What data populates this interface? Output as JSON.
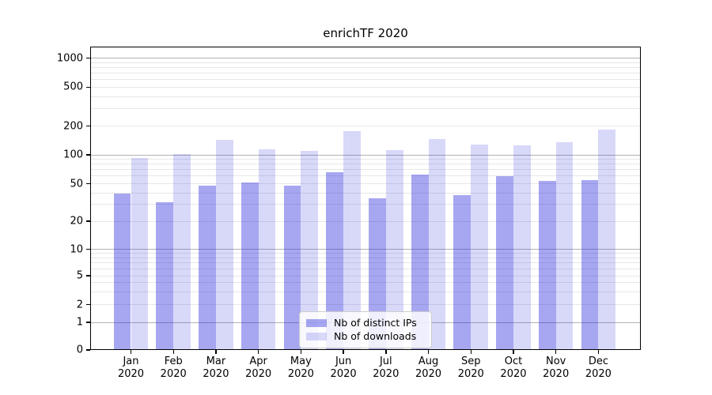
{
  "title": "enrichTF 2020",
  "legend": {
    "items": [
      {
        "label": "Nb of distinct IPs"
      },
      {
        "label": "Nb of downloads"
      }
    ]
  },
  "axes": {
    "y_tick_labels": [
      "0",
      "1",
      "2",
      "5",
      "10",
      "20",
      "50",
      "100",
      "200",
      "500",
      "1000"
    ],
    "x_months": [
      "Jan",
      "Feb",
      "Mar",
      "Apr",
      "May",
      "Jun",
      "Jul",
      "Aug",
      "Sep",
      "Oct",
      "Nov",
      "Dec"
    ],
    "x_year": "2020"
  },
  "colors": {
    "bar_dark": "rgba(34,34,221,0.40)",
    "bar_light": "rgba(34,34,221,0.175)",
    "bar_dark_flat": "#a7a7f1",
    "bar_light_flat": "#d8d8f9",
    "grid_major": "#b2b2b2",
    "grid_minor": "#e7e7e7",
    "spine": "#000000"
  },
  "chart_data": {
    "type": "bar",
    "title": "enrichTF 2020",
    "categories": [
      "Jan 2020",
      "Feb 2020",
      "Mar 2020",
      "Apr 2020",
      "May 2020",
      "Jun 2020",
      "Jul 2020",
      "Aug 2020",
      "Sep 2020",
      "Oct 2020",
      "Nov 2020",
      "Dec 2020"
    ],
    "series": [
      {
        "name": "Nb of distinct IPs",
        "color": "#a7a7f1",
        "values": [
          39,
          32,
          48,
          51,
          48,
          66,
          35,
          62,
          38,
          60,
          53,
          54
        ]
      },
      {
        "name": "Nb of downloads",
        "color": "#d8d8f9",
        "values": [
          92,
          102,
          144,
          114,
          110,
          176,
          113,
          145,
          128,
          126,
          135,
          182
        ]
      }
    ],
    "xlabel": "",
    "ylabel": "",
    "yscale": "symlog",
    "ylim": [
      0,
      1300
    ],
    "y_ticks": [
      0,
      1,
      2,
      5,
      10,
      20,
      50,
      100,
      200,
      500,
      1000
    ],
    "grid": "both",
    "legend_position": "lower center"
  }
}
